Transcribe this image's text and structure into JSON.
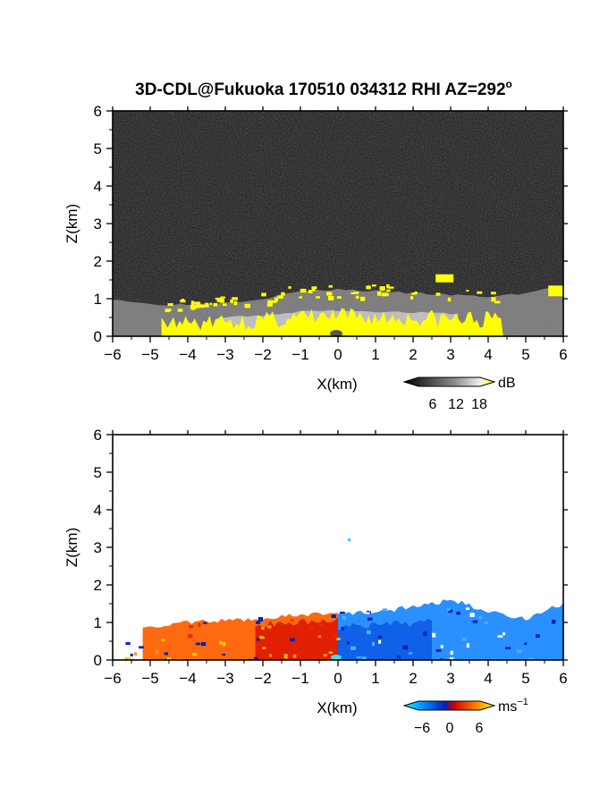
{
  "title": "3D-CDL@Fukuoka 170510 034312 RHI AZ=292",
  "title_superscript": "o",
  "chart_data": [
    {
      "type": "heatmap",
      "variable": "backscatter intensity",
      "xlabel": "X(km)",
      "ylabel": "Z(km)",
      "xlim": [
        -6,
        6
      ],
      "ylim": [
        0,
        6
      ],
      "xticks": [
        "-6",
        "-5",
        "-4",
        "-3",
        "-2",
        "-1",
        "0",
        "1",
        "2",
        "3",
        "4",
        "5",
        "6"
      ],
      "yticks": [
        "0",
        "1",
        "2",
        "3",
        "4",
        "5",
        "6"
      ],
      "colorbar": {
        "unit": "dB",
        "ticks": [
          "6",
          "12",
          "18"
        ],
        "range": [
          0,
          21
        ]
      },
      "colors": {
        "background": "#262626",
        "high": "#ffff00"
      },
      "features": [
        {
          "name": "aerosol layer top (Z km) vs X km",
          "x": [
            -6,
            -5,
            -4,
            -3,
            -2,
            -1,
            0,
            1,
            2,
            3,
            4,
            5,
            6
          ],
          "z": [
            1.0,
            0.85,
            0.85,
            0.9,
            1.0,
            1.2,
            1.25,
            1.2,
            1.15,
            1.1,
            1.05,
            1.15,
            1.35
          ]
        },
        {
          "name": "strong echo >18 dB",
          "x_range": [
            -4.7,
            4.4
          ],
          "z_range": [
            0.05,
            1.6
          ]
        }
      ]
    },
    {
      "type": "heatmap",
      "variable": "Doppler radial velocity",
      "xlabel": "X(km)",
      "ylabel": "Z(km)",
      "xlim": [
        -6,
        6
      ],
      "ylim": [
        0,
        6
      ],
      "xticks": [
        "-6",
        "-5",
        "-4",
        "-3",
        "-2",
        "-1",
        "0",
        "1",
        "2",
        "3",
        "4",
        "5",
        "6"
      ],
      "yticks": [
        "0",
        "1",
        "2",
        "3",
        "4",
        "5",
        "6"
      ],
      "colorbar": {
        "unit": "ms",
        "unit_exponent": "−1",
        "ticks": [
          "−6",
          "0",
          "6"
        ],
        "range": [
          -9,
          9
        ]
      },
      "features": [
        {
          "name": "echo top (Z km) vs X km",
          "x": [
            -6,
            -5,
            -4,
            -3,
            -2,
            -1,
            0,
            1,
            2,
            3,
            4,
            5,
            6
          ],
          "z": [
            0.95,
            0.9,
            1.0,
            1.05,
            1.1,
            1.2,
            1.25,
            1.3,
            1.4,
            1.6,
            1.3,
            1.1,
            1.5
          ]
        },
        {
          "name": "negative-x side velocity",
          "x_range": [
            -6,
            0
          ],
          "velocity_ms": 3.5
        },
        {
          "name": "positive-x side velocity",
          "x_range": [
            0,
            6
          ],
          "velocity_ms": -5
        },
        {
          "name": "isolated echo",
          "x": 0.3,
          "z": 3.2,
          "velocity_ms": -7
        }
      ]
    }
  ]
}
